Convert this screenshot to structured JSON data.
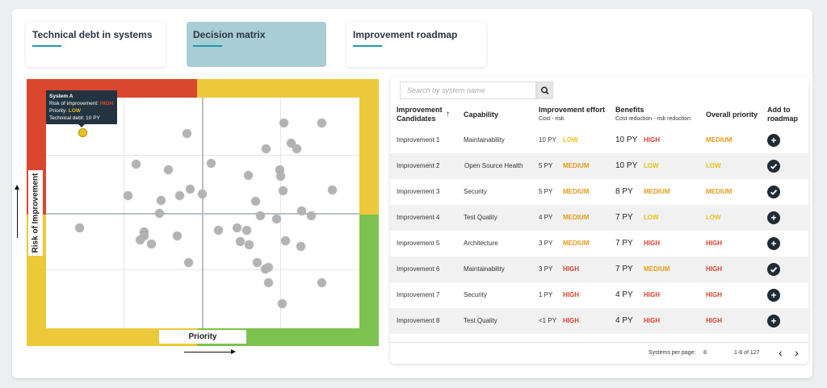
{
  "tabs": [
    {
      "label": "Technical debt in systems"
    },
    {
      "label": "Decision matrix"
    },
    {
      "label": "Improvement roadmap"
    }
  ],
  "matrix": {
    "ylabel": "Risk of Improvement",
    "xlabel": "Priority",
    "tooltip": {
      "title": "System A",
      "risk_label": "Risk of improvement:",
      "risk_value": "HIGH",
      "priority_label": "Priority:",
      "priority_value": "LOW",
      "debt": "Technical debt: 10 PY"
    },
    "colors": {
      "red": "#d9472f",
      "yellow": "#ebc93a",
      "green": "#7bc24f",
      "point": "#b3b3b3",
      "selected": "#e8c21e"
    }
  },
  "table": {
    "search_placeholder": "Search by system name",
    "headers": {
      "candidates": "Improvement Candidates",
      "capability": "Capability",
      "effort": "Improvement effort",
      "effort_sub": "Cost  -  risk",
      "benefits": "Benefits",
      "benefits_sub": "Cost reduction - risk reduction",
      "priority": "Overall priority",
      "add": "Add to roadmap"
    },
    "rows": [
      {
        "name": "Improvement 1",
        "capability": "Maintainability",
        "cost": "10 PY",
        "risk": "LOW",
        "cost_red": "10 PY",
        "risk_red": "HIGH",
        "priority": "MEDIUM",
        "added": false
      },
      {
        "name": "Improvement 2",
        "capability": "Open Source Health",
        "cost": "5 PY",
        "risk": "MEDIUM",
        "cost_red": "10 PY",
        "risk_red": "LOW",
        "priority": "LOW",
        "added": true
      },
      {
        "name": "Improvement 3",
        "capability": "Security",
        "cost": "5 PY",
        "risk": "MEDIUM",
        "cost_red": "8 PY",
        "risk_red": "MEDIUM",
        "priority": "MEDIUM",
        "added": true
      },
      {
        "name": "Improvement 4",
        "capability": "Test Quality",
        "cost": "4 PY",
        "risk": "MEDIUM",
        "cost_red": "7 PY",
        "risk_red": "LOW",
        "priority": "LOW",
        "added": false
      },
      {
        "name": "Improvement 5",
        "capability": "Architecture",
        "cost": "3 PY",
        "risk": "MEDIUM",
        "cost_red": "7 PY",
        "risk_red": "HIGH",
        "priority": "HIGH",
        "added": false
      },
      {
        "name": "Improvement 6",
        "capability": "Maintainability",
        "cost": "3 PY",
        "risk": "HIGH",
        "cost_red": "7 PY",
        "risk_red": "MEDIUM",
        "priority": "HIGH",
        "added": true
      },
      {
        "name": "Improvement 7",
        "capability": "Security",
        "cost": "1 PY",
        "risk": "HIGH",
        "cost_red": "4 PY",
        "risk_red": "HIGH",
        "priority": "HIGH",
        "added": false
      },
      {
        "name": "Improvement 8",
        "capability": "Test Quality",
        "cost": "<1 PY",
        "risk": "HIGH",
        "cost_red": "4 PY",
        "risk_red": "HIGH",
        "priority": "HIGH",
        "added": false
      }
    ],
    "footer": {
      "per_page_label": "Systems per page:",
      "per_page": "8",
      "range": "1-8 of 127"
    },
    "level_colors": {
      "HIGH": "#d9442d",
      "MEDIUM": "#e59b1e",
      "LOW": "#e8c21e"
    }
  }
}
